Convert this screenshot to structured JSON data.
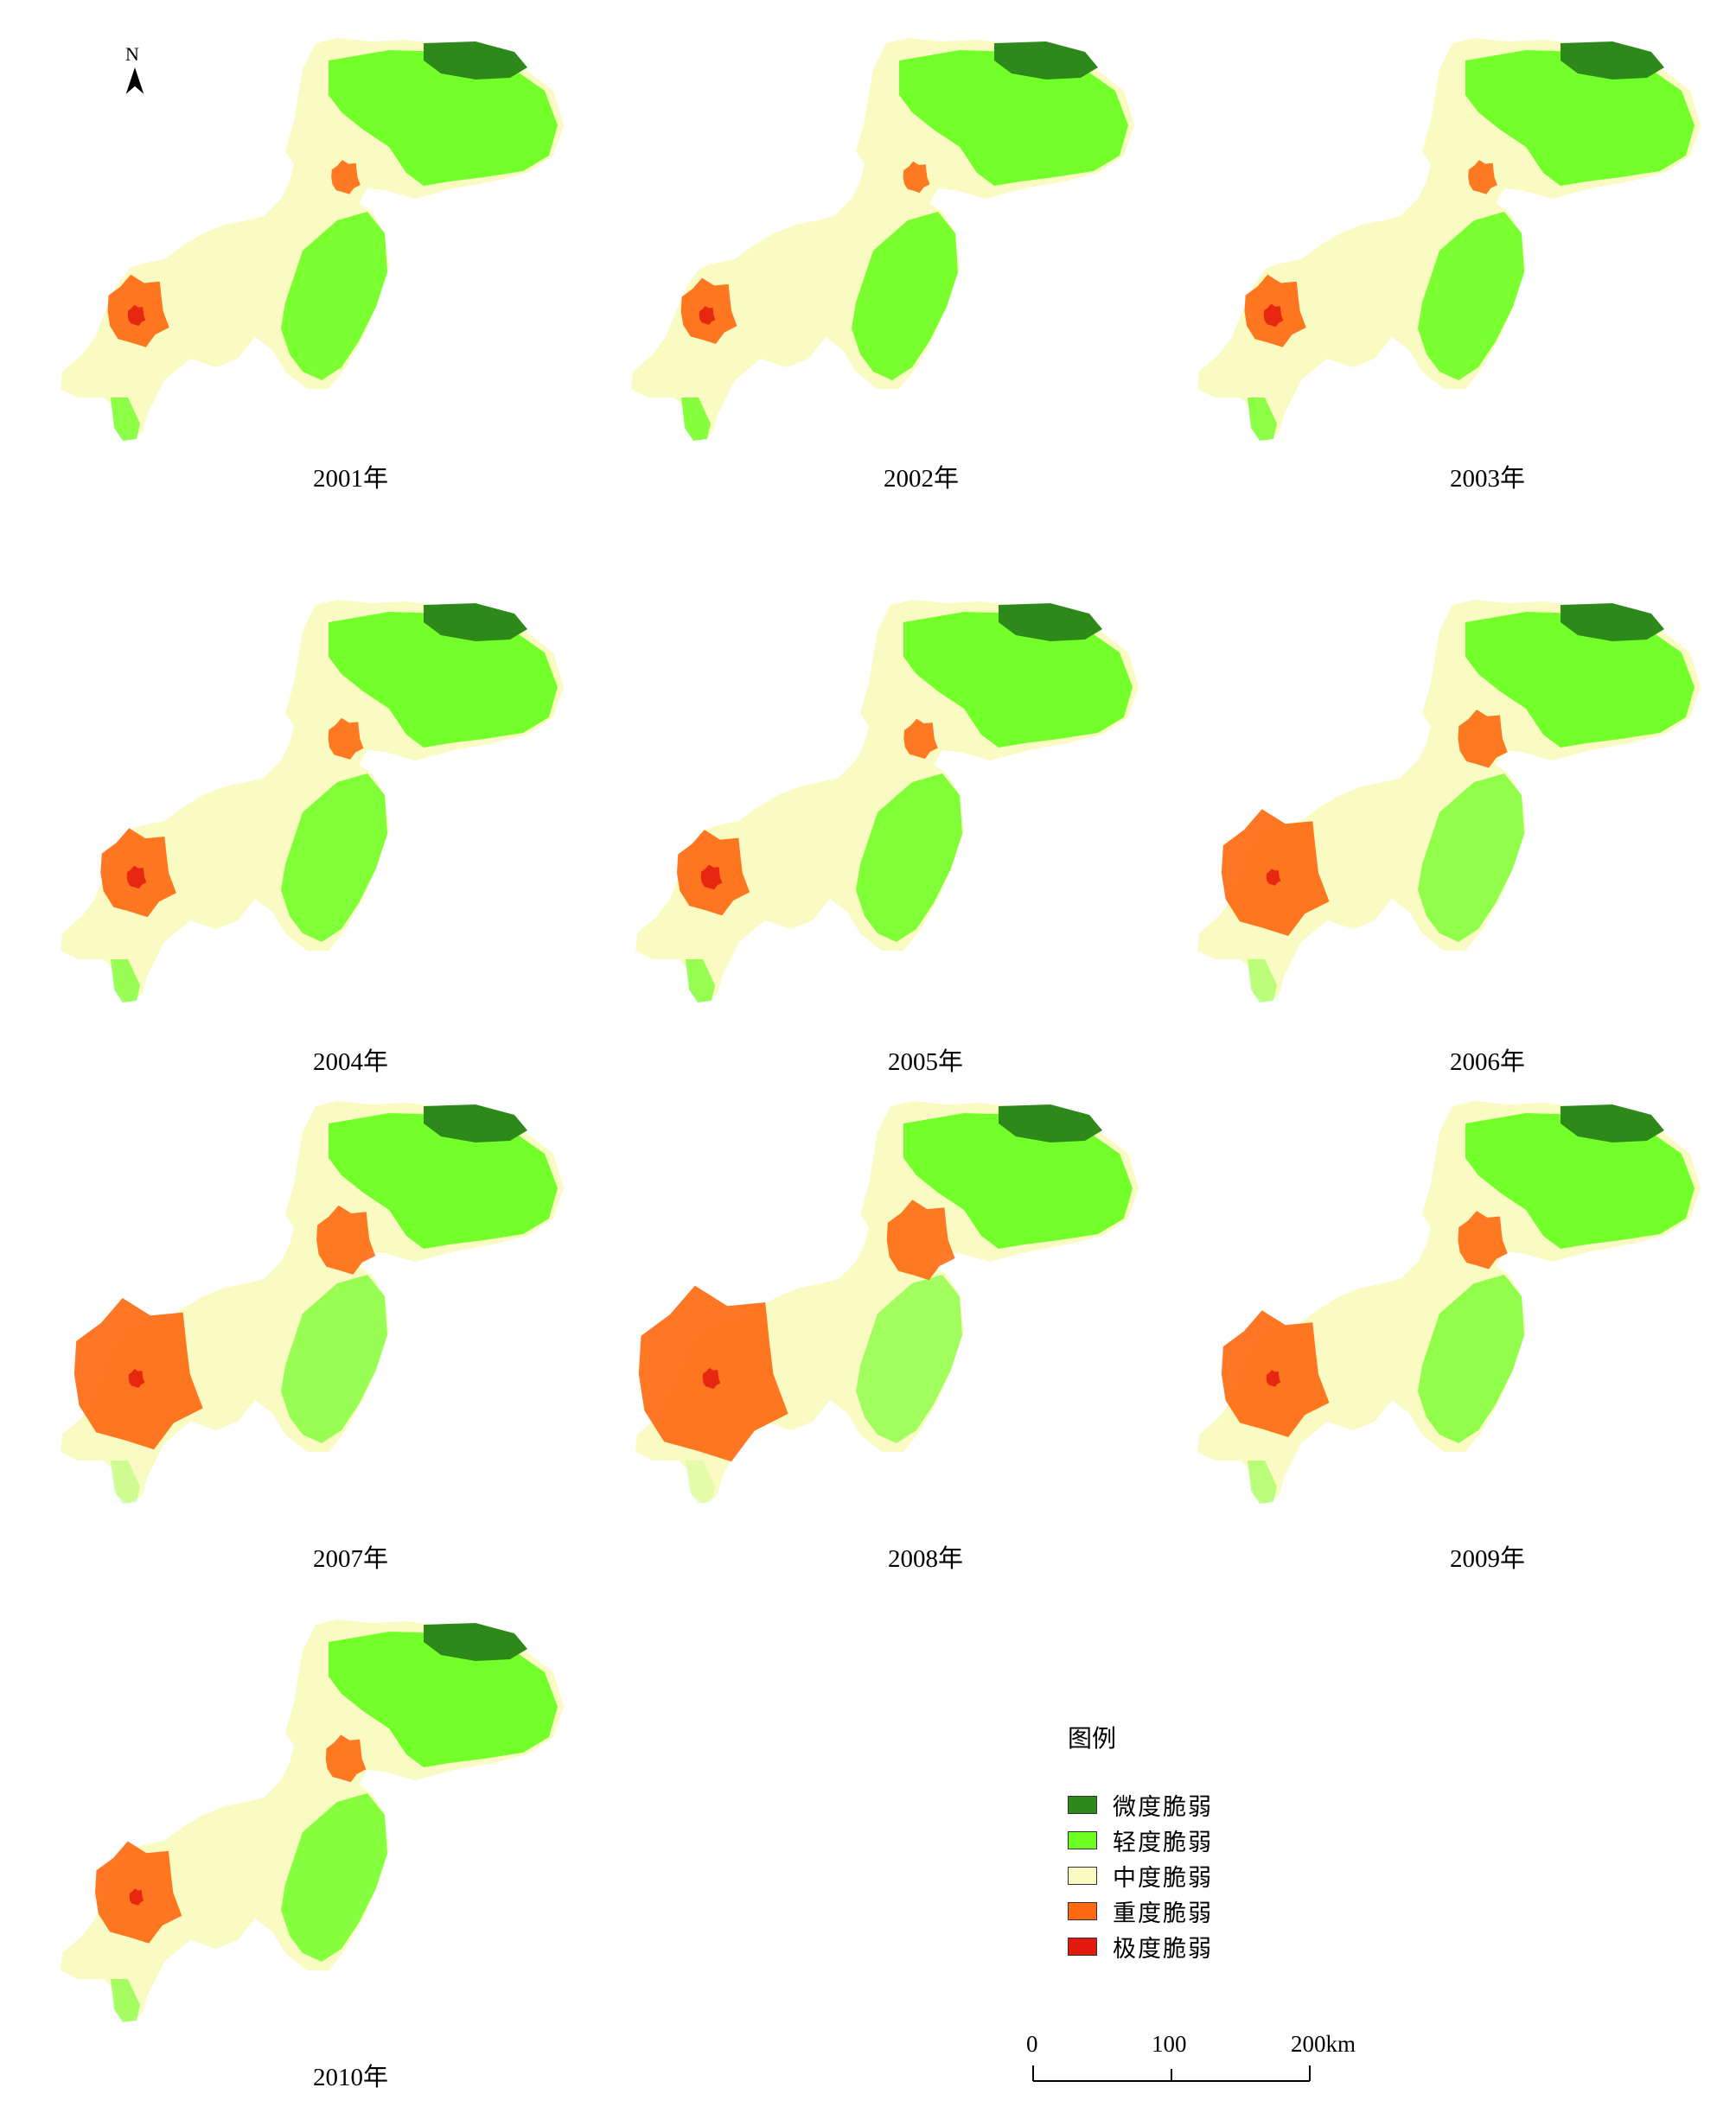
{
  "figure": {
    "north_label": "N",
    "panels": [
      {
        "year": "2001年",
        "severe_level": 0.25,
        "orange_spread": 0.22
      },
      {
        "year": "2002年",
        "severe_level": 0.2,
        "orange_spread": 0.18
      },
      {
        "year": "2003年",
        "severe_level": 0.3,
        "orange_spread": 0.22
      },
      {
        "year": "2004年",
        "severe_level": 0.3,
        "orange_spread": 0.32
      },
      {
        "year": "2005年",
        "severe_level": 0.35,
        "orange_spread": 0.3
      },
      {
        "year": "2006年",
        "severe_level": 0.15,
        "orange_spread": 0.55
      },
      {
        "year": "2007年",
        "severe_level": 0.2,
        "orange_spread": 0.7
      },
      {
        "year": "2008年",
        "severe_level": 0.25,
        "orange_spread": 0.85
      },
      {
        "year": "2009年",
        "severe_level": 0.15,
        "orange_spread": 0.55
      },
      {
        "year": "2010年",
        "severe_level": 0.15,
        "orange_spread": 0.4
      }
    ]
  },
  "legend": {
    "title": "图例",
    "items": [
      {
        "label": "微度脆弱",
        "color": "#2d8a1a"
      },
      {
        "label": "轻度脆弱",
        "color": "#6cff21"
      },
      {
        "label": "中度脆弱",
        "color": "#f9fbc2"
      },
      {
        "label": "重度脆弱",
        "color": "#ff6a12"
      },
      {
        "label": "极度脆弱",
        "color": "#e31a0e"
      }
    ]
  },
  "scale": {
    "ticks": [
      "0",
      "100",
      "200km"
    ]
  }
}
